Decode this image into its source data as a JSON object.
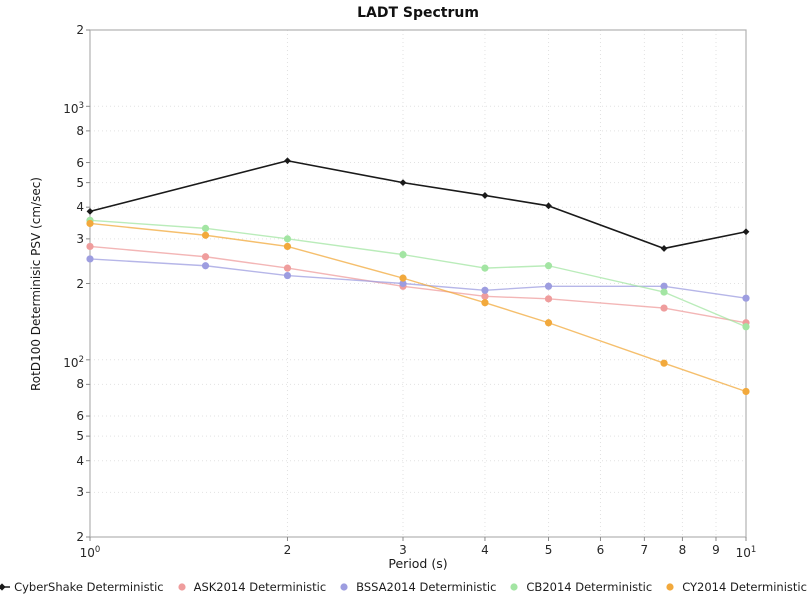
{
  "page": {
    "background": "#ffffff"
  },
  "chart_data": {
    "type": "line",
    "title": "LADT Spectrum",
    "xlabel": "Period (s)",
    "ylabel": "RotD100 Determinisic PSV (cm/sec)",
    "xscale": "log",
    "yscale": "log",
    "xlim": [
      1,
      10
    ],
    "ylim": [
      20,
      2000
    ],
    "grid": "dotted-both-axes",
    "legend_position": "bottom-center",
    "x": [
      1,
      1.5,
      2,
      3,
      4,
      5,
      7.5,
      10
    ],
    "series": [
      {
        "name": "CyberShake Deterministic",
        "color": "#1a1a1a",
        "marker": "diamond",
        "values": [
          385,
          null,
          610,
          500,
          445,
          405,
          275,
          320
        ]
      },
      {
        "name": "ASK2014 Deterministic",
        "color": "#ef9d9d",
        "marker": "circle",
        "values": [
          280,
          255,
          230,
          195,
          178,
          174,
          160,
          140
        ]
      },
      {
        "name": "BSSA2014 Deterministic",
        "color": "#9d9de0",
        "marker": "circle",
        "values": [
          250,
          235,
          215,
          200,
          188,
          195,
          195,
          175
        ]
      },
      {
        "name": "CB2014 Deterministic",
        "color": "#a3e5a3",
        "marker": "circle",
        "values": [
          355,
          330,
          300,
          260,
          230,
          235,
          185,
          135
        ]
      },
      {
        "name": "CY2014 Deterministic",
        "color": "#f2a93c",
        "marker": "circle",
        "values": [
          345,
          310,
          280,
          210,
          168,
          140,
          97,
          75
        ]
      }
    ],
    "x_tick_labels": [
      {
        "value": 1,
        "power": 0
      },
      {
        "value": 2,
        "label": "2"
      },
      {
        "value": 3,
        "label": "3"
      },
      {
        "value": 4,
        "label": "4"
      },
      {
        "value": 5,
        "label": "5"
      },
      {
        "value": 6,
        "label": "6"
      },
      {
        "value": 7,
        "label": "7"
      },
      {
        "value": 8,
        "label": "8"
      },
      {
        "value": 9,
        "label": "9"
      },
      {
        "value": 10,
        "power": 1
      }
    ],
    "y_tick_labels": [
      {
        "value": 2000,
        "label": "2"
      },
      {
        "value": 1000,
        "power": 3
      },
      {
        "value": 800,
        "label": "8"
      },
      {
        "value": 600,
        "label": "6"
      },
      {
        "value": 500,
        "label": "5"
      },
      {
        "value": 400,
        "label": "4"
      },
      {
        "value": 300,
        "label": "3"
      },
      {
        "value": 200,
        "label": "2"
      },
      {
        "value": 100,
        "power": 2
      },
      {
        "value": 80,
        "label": "8"
      },
      {
        "value": 60,
        "label": "6"
      },
      {
        "value": 50,
        "label": "5"
      },
      {
        "value": 40,
        "label": "4"
      },
      {
        "value": 30,
        "label": "3"
      },
      {
        "value": 20,
        "label": "2"
      }
    ],
    "grid_x_values": [
      2,
      3,
      4,
      5,
      6,
      7,
      8,
      9
    ],
    "grid_y_values": [
      1000,
      800,
      600,
      500,
      400,
      300,
      200,
      100,
      80,
      60,
      50,
      40,
      30,
      20
    ],
    "style_colors": {
      "grid": "#e2e2e2",
      "spine": "#b2b2b2",
      "tick": "#8a8a8a"
    }
  }
}
